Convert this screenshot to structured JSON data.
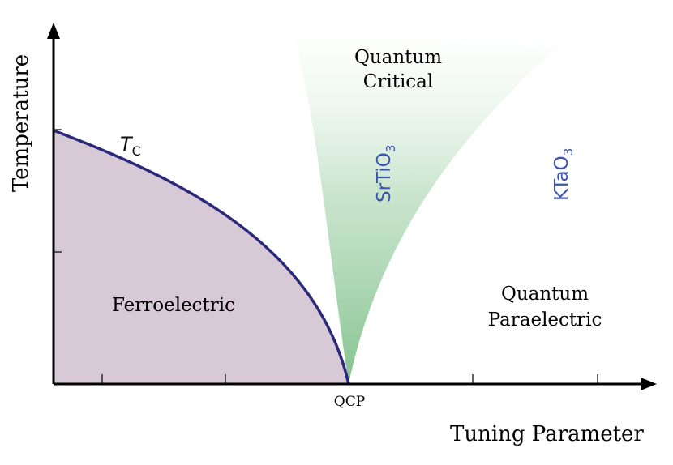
{
  "axes": {
    "x_label": "Tuning Parameter",
    "y_label": "Temperature",
    "x_tick_label": "QCP"
  },
  "phases": {
    "ordered": "Ferroelectric",
    "critical_line1": "Quantum",
    "critical_line2": "Critical",
    "disordered_line1": "Quantum",
    "disordered_line2": "Paraelectric"
  },
  "transition_line": {
    "symbol": "T",
    "subscript": "C"
  },
  "materials": [
    {
      "formula": "SrTiO",
      "subscript": "3"
    },
    {
      "formula": "KTaO",
      "subscript": "3"
    }
  ],
  "colors": {
    "ferroelectric_fill": "#d8c9d6",
    "tc_line": "#2b2a7a",
    "critical_fan": "#7fc08a",
    "material_text": "#3b54b0",
    "axis": "#000000"
  }
}
